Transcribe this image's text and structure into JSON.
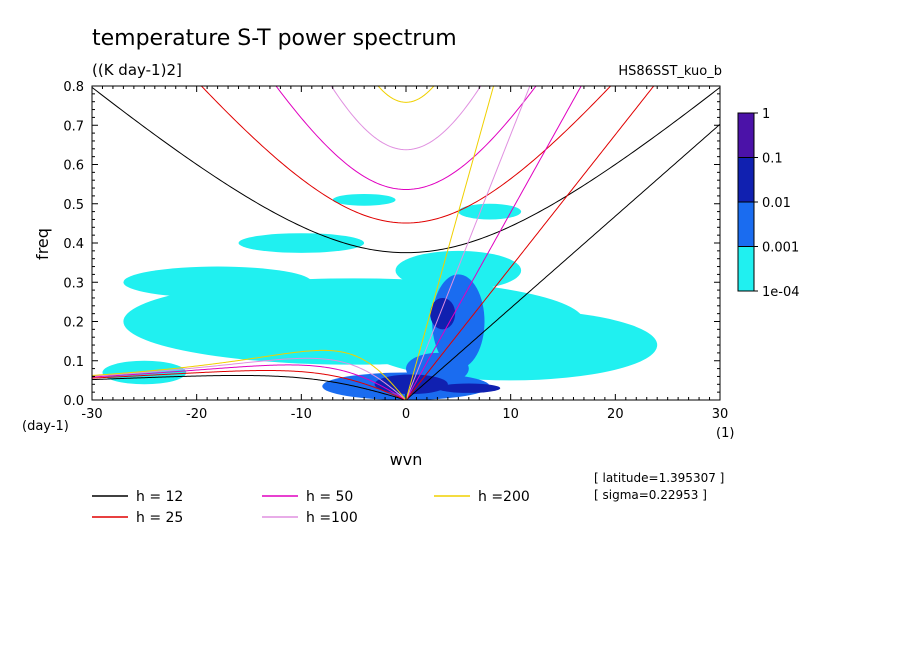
{
  "title": "temperature S-T power spectrum",
  "units": "((K day-1)2]",
  "run_name": "HS86SST_kuo_b",
  "chart_data": {
    "type": "heatmap",
    "xlabel": "wvn",
    "ylabel": "freq",
    "x_unit_label": "(1)",
    "y_unit_label": "(day-1)",
    "xlim": [
      -30,
      30
    ],
    "ylim": [
      0,
      0.8
    ],
    "x_ticks": [
      -30,
      -20,
      -10,
      0,
      10,
      20,
      30
    ],
    "x_tick_labels": [
      "-30",
      "-20",
      "-10",
      "0",
      "10",
      "20",
      "30"
    ],
    "y_ticks": [
      0,
      0.1,
      0.2,
      0.3,
      0.4,
      0.5,
      0.6,
      0.7,
      0.8
    ],
    "y_tick_labels": [
      "0.0",
      "0.1",
      "0.2",
      "0.3",
      "0.4",
      "0.5",
      "0.6",
      "0.7",
      "0.8"
    ],
    "colorbar": {
      "labels": [
        "1",
        "0.1",
        "0.01",
        "0.001",
        "1e-04"
      ],
      "colors": [
        "#4b12a8",
        "#1020b0",
        "#1a6cf0",
        "#20f0f0"
      ]
    },
    "spectral_regions": [
      {
        "level": "1e-04",
        "kind": "ellipse",
        "x": -5,
        "y": 0.2,
        "rx": 22,
        "ry": 0.11
      },
      {
        "level": "1e-04",
        "kind": "ellipse",
        "x": 10,
        "y": 0.14,
        "rx": 14,
        "ry": 0.09
      },
      {
        "level": "1e-04",
        "kind": "ellipse",
        "x": -18,
        "y": 0.3,
        "rx": 9,
        "ry": 0.04
      },
      {
        "level": "1e-04",
        "kind": "ellipse",
        "x": -10,
        "y": 0.4,
        "rx": 6,
        "ry": 0.025
      },
      {
        "level": "1e-04",
        "kind": "ellipse",
        "x": -4,
        "y": 0.51,
        "rx": 3,
        "ry": 0.015
      },
      {
        "level": "1e-04",
        "kind": "ellipse",
        "x": 8,
        "y": 0.48,
        "rx": 3,
        "ry": 0.02
      },
      {
        "level": "1e-04",
        "kind": "ellipse",
        "x": 5,
        "y": 0.33,
        "rx": 6,
        "ry": 0.05
      },
      {
        "level": "1e-04",
        "kind": "ellipse",
        "x": -25,
        "y": 0.07,
        "rx": 4,
        "ry": 0.03
      },
      {
        "level": "0.001",
        "kind": "ellipse",
        "x": 0,
        "y": 0.035,
        "rx": 8,
        "ry": 0.035
      },
      {
        "level": "0.001",
        "kind": "ellipse",
        "x": 5,
        "y": 0.2,
        "rx": 2.5,
        "ry": 0.12
      },
      {
        "level": "0.001",
        "kind": "ellipse",
        "x": 3,
        "y": 0.08,
        "rx": 3,
        "ry": 0.04
      },
      {
        "level": "0.01",
        "kind": "ellipse",
        "x": 0.5,
        "y": 0.04,
        "rx": 3.5,
        "ry": 0.025
      },
      {
        "level": "0.01",
        "kind": "ellipse",
        "x": 6,
        "y": 0.03,
        "rx": 3,
        "ry": 0.012
      },
      {
        "level": "0.01",
        "kind": "ellipse",
        "x": 3.5,
        "y": 0.22,
        "rx": 1.2,
        "ry": 0.04
      }
    ],
    "dispersion_curves": [
      {
        "name": "h = 12",
        "equivalent_depth": 12,
        "color": "#000000"
      },
      {
        "name": "h = 25",
        "equivalent_depth": 25,
        "color": "#e00000"
      },
      {
        "name": "h = 50",
        "equivalent_depth": 50,
        "color": "#e000c0"
      },
      {
        "name": "h =100",
        "equivalent_depth": 100,
        "color": "#e090e0"
      },
      {
        "name": "h =200",
        "equivalent_depth": 200,
        "color": "#f0d000"
      }
    ]
  },
  "legend": [
    {
      "label": "h = 12",
      "color": "#000000"
    },
    {
      "label": "h = 25",
      "color": "#e00000"
    },
    {
      "label": "h = 50",
      "color": "#e000c0"
    },
    {
      "label": "h =100",
      "color": "#e090e0"
    },
    {
      "label": "h =200",
      "color": "#f0d000"
    }
  ],
  "info": {
    "latitude": "[ latitude=1.395307 ]",
    "sigma": "[ sigma=0.22953 ]"
  }
}
